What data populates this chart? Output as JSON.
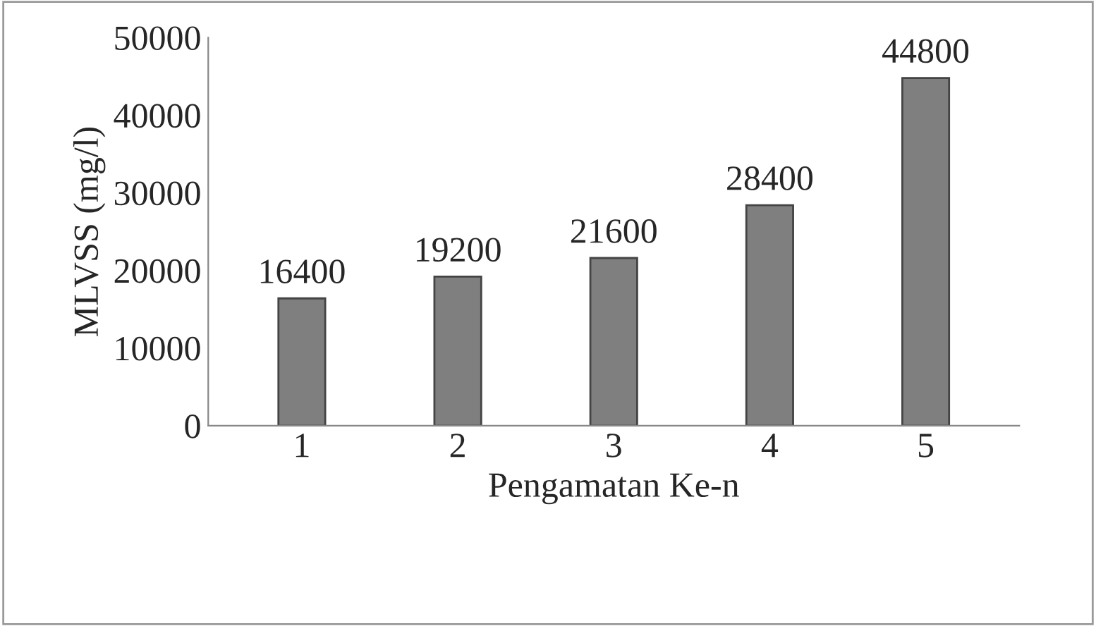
{
  "chart_data": {
    "type": "bar",
    "xlabel": "Pengamatan Ke-n",
    "ylabel": "MLVSS (mg/l)",
    "categories": [
      "1",
      "2",
      "3",
      "4",
      "5"
    ],
    "values": [
      16400,
      19200,
      21600,
      28400,
      44800
    ],
    "color": "#7f7f7f",
    "ylim": [
      0,
      50000
    ],
    "yticks": [
      0,
      10000,
      20000,
      30000,
      40000,
      50000
    ],
    "data_labels": true,
    "grid": false,
    "legend": false
  }
}
